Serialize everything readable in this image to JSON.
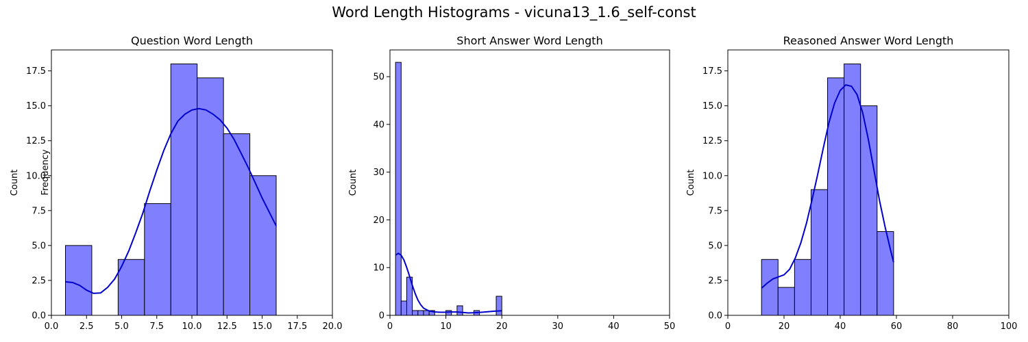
{
  "suptitle": "Word Length Histograms - vicuna13_1.6_self-const",
  "colors": {
    "bar_fill": "#8080ff",
    "bar_edge": "#000000",
    "kde": "#0000cc"
  },
  "chart_data": [
    {
      "type": "bar",
      "title": "Question Word Length",
      "ylabel": "Count",
      "ylabel_extra": "Frequency",
      "xlim": [
        0,
        20
      ],
      "ylim": [
        0,
        19
      ],
      "xticks": [
        0,
        2.5,
        5,
        7.5,
        10,
        12.5,
        15,
        17.5,
        20
      ],
      "xtick_labels": [
        "0.0",
        "2.5",
        "5.0",
        "7.5",
        "10.0",
        "12.5",
        "15.0",
        "17.5",
        "20.0"
      ],
      "yticks": [
        0,
        2.5,
        5,
        7.5,
        10,
        12.5,
        15,
        17.5
      ],
      "ytick_labels": [
        "0.0",
        "2.5",
        "5.0",
        "7.5",
        "10.0",
        "12.5",
        "15.0",
        "17.5"
      ],
      "bins": [
        [
          1,
          2.875
        ],
        [
          2.875,
          4.75
        ],
        [
          4.75,
          6.625
        ],
        [
          6.625,
          8.5
        ],
        [
          8.5,
          10.375
        ],
        [
          10.375,
          12.25
        ],
        [
          12.25,
          14.125
        ],
        [
          14.125,
          16
        ]
      ],
      "counts": [
        5,
        0,
        4,
        8,
        18,
        17,
        13,
        10
      ],
      "kde": [
        [
          1,
          2.4
        ],
        [
          1.5,
          2.35
        ],
        [
          2,
          2.15
        ],
        [
          2.5,
          1.8
        ],
        [
          3,
          1.57
        ],
        [
          3.5,
          1.6
        ],
        [
          4,
          2.0
        ],
        [
          4.5,
          2.6
        ],
        [
          5,
          3.5
        ],
        [
          5.5,
          4.6
        ],
        [
          6,
          5.9
        ],
        [
          6.5,
          7.3
        ],
        [
          7,
          8.9
        ],
        [
          7.5,
          10.4
        ],
        [
          8,
          11.8
        ],
        [
          8.5,
          13.0
        ],
        [
          9,
          13.9
        ],
        [
          9.5,
          14.4
        ],
        [
          10,
          14.7
        ],
        [
          10.5,
          14.8
        ],
        [
          11,
          14.7
        ],
        [
          11.5,
          14.4
        ],
        [
          12,
          14.0
        ],
        [
          12.5,
          13.4
        ],
        [
          13,
          12.6
        ],
        [
          13.5,
          11.6
        ],
        [
          14,
          10.6
        ],
        [
          14.5,
          9.5
        ],
        [
          15,
          8.4
        ],
        [
          15.5,
          7.4
        ],
        [
          16,
          6.4
        ]
      ]
    },
    {
      "type": "bar",
      "title": "Short Answer Word Length",
      "ylabel": "Count",
      "xlim": [
        0,
        50
      ],
      "ylim": [
        0,
        55.6
      ],
      "xticks": [
        0,
        10,
        20,
        30,
        40,
        50
      ],
      "xtick_labels": [
        "0",
        "10",
        "20",
        "30",
        "40",
        "50"
      ],
      "yticks": [
        0,
        10,
        20,
        30,
        40,
        50
      ],
      "ytick_labels": [
        "0",
        "10",
        "20",
        "30",
        "40",
        "50"
      ],
      "bins": [
        [
          1,
          2
        ],
        [
          2,
          3
        ],
        [
          3,
          4
        ],
        [
          4,
          5
        ],
        [
          5,
          6
        ],
        [
          6,
          7
        ],
        [
          7,
          8
        ],
        [
          8,
          9
        ],
        [
          9,
          10
        ],
        [
          10,
          11
        ],
        [
          11,
          12
        ],
        [
          12,
          13
        ],
        [
          13,
          14
        ],
        [
          14,
          15
        ],
        [
          15,
          16
        ],
        [
          16,
          17
        ],
        [
          17,
          18
        ],
        [
          18,
          19
        ],
        [
          19,
          20
        ]
      ],
      "counts": [
        53,
        3,
        8,
        1,
        1,
        1,
        1,
        0,
        0,
        1,
        0,
        2,
        0,
        0,
        1,
        0,
        0,
        0,
        4
      ],
      "kde": [
        [
          1,
          12.6
        ],
        [
          1.5,
          13.0
        ],
        [
          2,
          12.6
        ],
        [
          2.5,
          11.6
        ],
        [
          3,
          10.0
        ],
        [
          3.5,
          8.2
        ],
        [
          4,
          6.3
        ],
        [
          4.5,
          4.6
        ],
        [
          5,
          3.2
        ],
        [
          5.5,
          2.2
        ],
        [
          6,
          1.5
        ],
        [
          7,
          0.9
        ],
        [
          8,
          0.7
        ],
        [
          9,
          0.65
        ],
        [
          10,
          0.65
        ],
        [
          11,
          0.7
        ],
        [
          12,
          0.7
        ],
        [
          13,
          0.6
        ],
        [
          14,
          0.5
        ],
        [
          15,
          0.55
        ],
        [
          16,
          0.6
        ],
        [
          17,
          0.7
        ],
        [
          18,
          0.8
        ],
        [
          19,
          0.9
        ],
        [
          20,
          0.95
        ]
      ]
    },
    {
      "type": "bar",
      "title": "Reasoned Answer Word Length",
      "ylabel": "Count",
      "xlim": [
        0,
        100
      ],
      "ylim": [
        0,
        19
      ],
      "xticks": [
        0,
        20,
        40,
        60,
        80,
        100
      ],
      "xtick_labels": [
        "0",
        "20",
        "40",
        "60",
        "80",
        "100"
      ],
      "yticks": [
        0,
        2.5,
        5,
        7.5,
        10,
        12.5,
        15,
        17.5
      ],
      "ytick_labels": [
        "0.0",
        "2.5",
        "5.0",
        "7.5",
        "10.0",
        "12.5",
        "15.0",
        "17.5"
      ],
      "bins": [
        [
          12,
          17.875
        ],
        [
          17.875,
          23.75
        ],
        [
          23.75,
          29.625
        ],
        [
          29.625,
          35.5
        ],
        [
          35.5,
          41.375
        ],
        [
          41.375,
          47.25
        ],
        [
          47.25,
          53.125
        ],
        [
          53.125,
          59
        ]
      ],
      "counts": [
        4,
        2,
        4,
        9,
        17,
        18,
        15,
        6
      ],
      "kde": [
        [
          12,
          1.95
        ],
        [
          14,
          2.3
        ],
        [
          16,
          2.6
        ],
        [
          18,
          2.75
        ],
        [
          20,
          2.9
        ],
        [
          22,
          3.3
        ],
        [
          24,
          4.1
        ],
        [
          26,
          5.2
        ],
        [
          28,
          6.6
        ],
        [
          30,
          8.3
        ],
        [
          32,
          10.1
        ],
        [
          34,
          12.0
        ],
        [
          36,
          13.8
        ],
        [
          38,
          15.2
        ],
        [
          40,
          16.1
        ],
        [
          42,
          16.5
        ],
        [
          44,
          16.4
        ],
        [
          46,
          15.8
        ],
        [
          48,
          14.5
        ],
        [
          50,
          12.6
        ],
        [
          52,
          10.4
        ],
        [
          54,
          8.2
        ],
        [
          56,
          6.3
        ],
        [
          58,
          4.6
        ],
        [
          59,
          3.8
        ]
      ]
    }
  ]
}
